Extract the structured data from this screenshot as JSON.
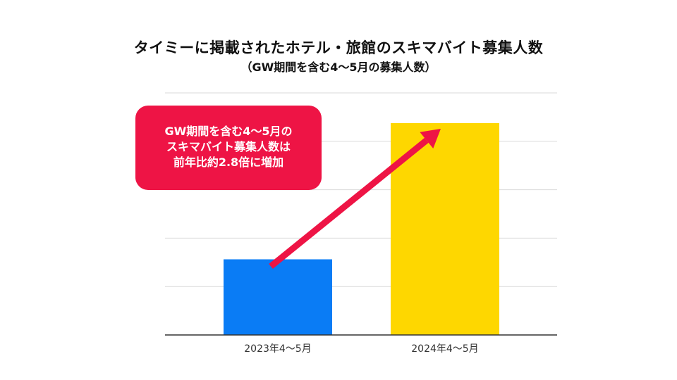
{
  "title": "タイミーに掲載されたホテル・旅館のスキマバイト募集人数",
  "subtitle": "（GW期間を含む4〜5月の募集人数）",
  "callout": {
    "line1": "GW期間を含む4〜5月の",
    "line2": "スキマバイト募集人数は",
    "line3": "前年比約2.8倍に増加"
  },
  "colors": {
    "bar_2023": "#0a7cf5",
    "bar_2024": "#fed700",
    "arrow": "#ee1445",
    "callout_bg": "#ee1445"
  },
  "chart_data": {
    "type": "bar",
    "categories": [
      "2023年4〜5月",
      "2024年4〜5月"
    ],
    "values": [
      1.0,
      2.8
    ],
    "ylim": [
      0,
      3.2
    ],
    "gridlines": 5,
    "grid": true,
    "annotation": "arrow from 2023 bar to 2024 bar"
  }
}
